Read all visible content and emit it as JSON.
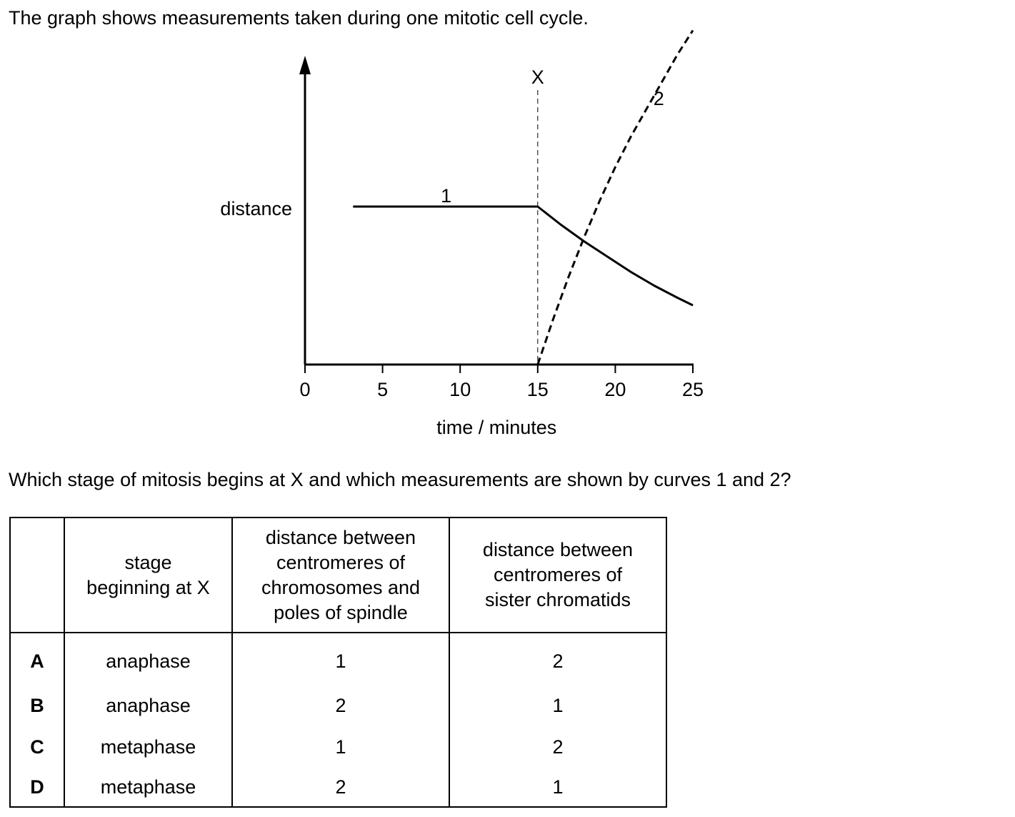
{
  "intro_text": "The graph shows measurements taken during one mitotic cell cycle.",
  "question_text": "Which stage of mitosis begins at X and which measurements are shown by curves 1 and 2?",
  "chart_data": {
    "type": "line",
    "xlabel": "time / minutes",
    "ylabel": "distance",
    "x_ticks": [
      "0",
      "5",
      "10",
      "15",
      "20",
      "25"
    ],
    "xlim": [
      0,
      25
    ],
    "ylim": [
      0,
      1
    ],
    "marker_label": "X",
    "marker_x": 15,
    "series": [
      {
        "name": "1",
        "style": "solid",
        "points": [
          [
            3.1,
            0.52
          ],
          [
            15,
            0.52
          ],
          [
            16.5,
            0.46
          ],
          [
            18,
            0.405
          ],
          [
            19.5,
            0.355
          ],
          [
            21,
            0.305
          ],
          [
            22.5,
            0.26
          ],
          [
            24,
            0.22
          ],
          [
            25,
            0.195
          ]
        ]
      },
      {
        "name": "2",
        "style": "dashed",
        "points": [
          [
            15,
            0.0
          ],
          [
            16,
            0.15
          ],
          [
            17,
            0.29
          ],
          [
            18,
            0.42
          ],
          [
            19,
            0.54
          ],
          [
            20,
            0.65
          ],
          [
            21,
            0.75
          ],
          [
            22,
            0.84
          ],
          [
            23,
            0.93
          ],
          [
            24,
            1.02
          ],
          [
            25,
            1.1
          ]
        ]
      }
    ]
  },
  "table": {
    "headers": [
      "",
      "stage\nbeginning at X",
      "distance between\ncentromeres of\nchromosomes and\npoles of spindle",
      "distance between\ncentromeres of\nsister chromatids"
    ],
    "rows": [
      [
        "A",
        "anaphase",
        "1",
        "2"
      ],
      [
        "B",
        "anaphase",
        "2",
        "1"
      ],
      [
        "C",
        "metaphase",
        "1",
        "2"
      ],
      [
        "D",
        "metaphase",
        "2",
        "1"
      ]
    ]
  }
}
